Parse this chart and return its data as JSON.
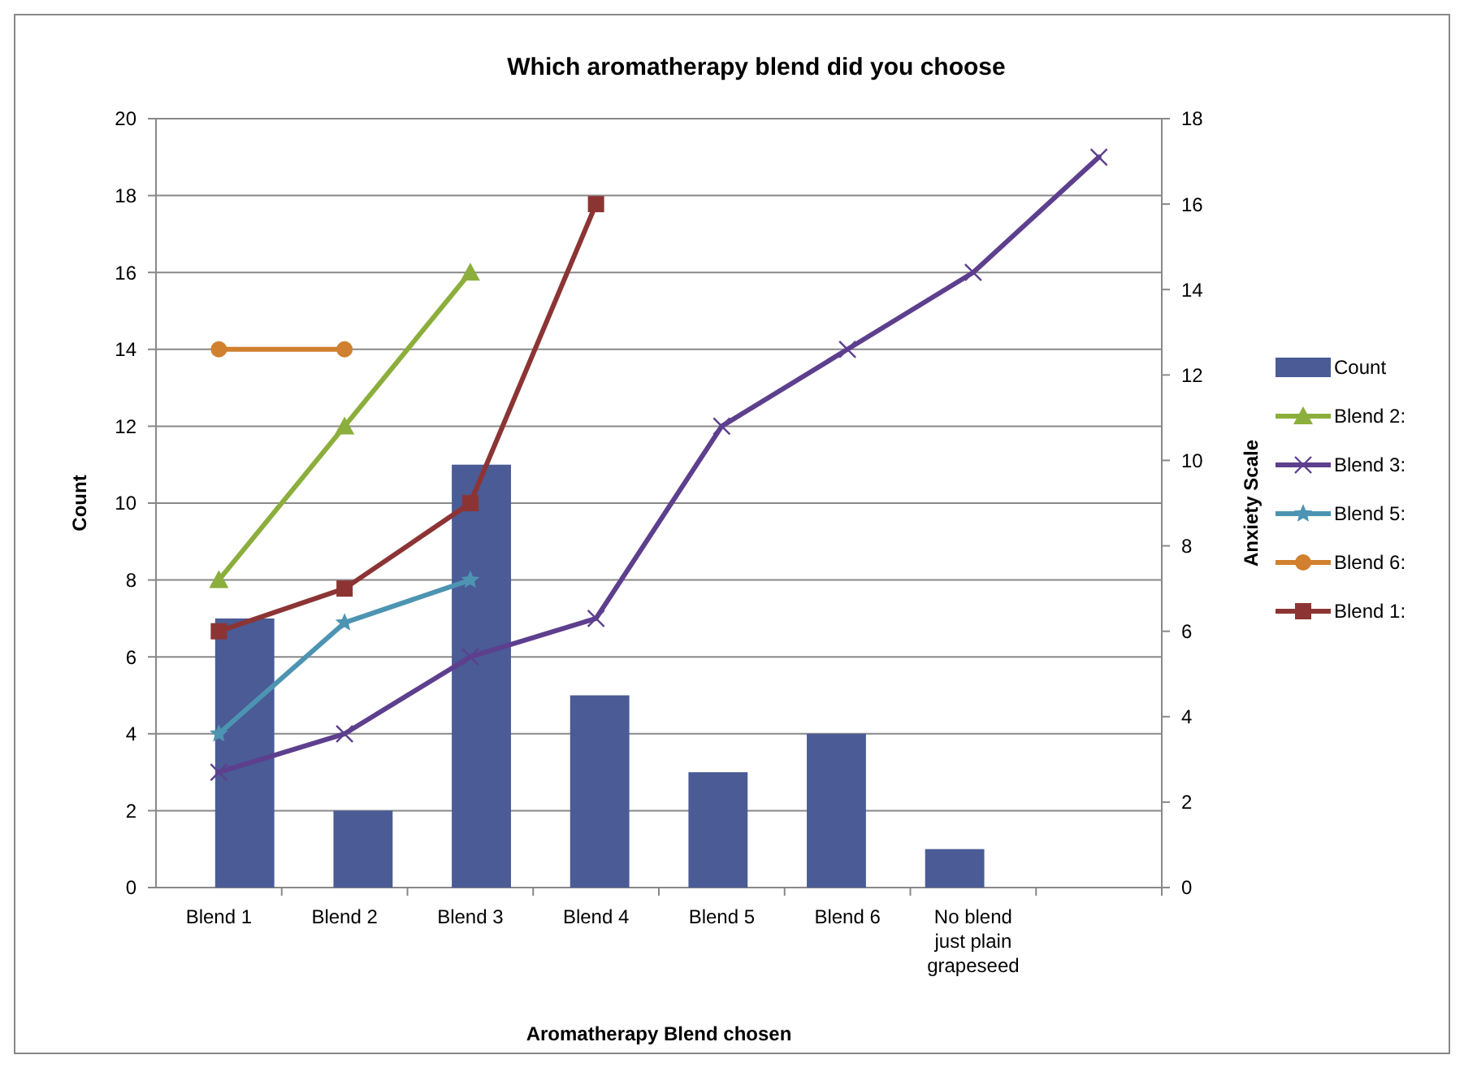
{
  "chart_data": {
    "type": "bar",
    "title": "Which aromatherapy blend did you choose",
    "xlabel": "Aromatherapy Blend chosen",
    "ylabel": "Count",
    "y2label": "Anxiety Scale",
    "categories": [
      "Blend 1",
      "Blend 2",
      "Blend 3",
      "Blend 4",
      "Blend 5",
      "Blend 6",
      "No blend just plain grapeseed",
      null
    ],
    "ylim": [
      0,
      20
    ],
    "yticks": [
      0,
      2,
      4,
      6,
      8,
      10,
      12,
      14,
      16,
      18,
      20
    ],
    "y2lim": [
      0,
      18
    ],
    "y2ticks": [
      0,
      2,
      4,
      6,
      8,
      10,
      12,
      14,
      16,
      18
    ],
    "grid": "y",
    "legend": "right",
    "series": [
      {
        "name": "Count",
        "color": "#4a5b96",
        "values": [
          7,
          2,
          11,
          5,
          3,
          4,
          1,
          null
        ]
      },
      {
        "name": "Blend 2:",
        "type": "line",
        "axis": "y2",
        "marker": "triangle",
        "color": "#8cae3c",
        "values": [
          7.2,
          10.8,
          14.4,
          null,
          null,
          null,
          null,
          null
        ]
      },
      {
        "name": "Blend 3:",
        "type": "line",
        "axis": "y2",
        "marker": "cross",
        "color": "#5d3f8e",
        "values": [
          2.7,
          3.6,
          5.4,
          6.3,
          10.8,
          12.6,
          14.4,
          17.1
        ]
      },
      {
        "name": "Blend 5:",
        "type": "line",
        "axis": "y2",
        "marker": "star",
        "color": "#4d94b2",
        "values": [
          3.6,
          6.2,
          7.2,
          null,
          null,
          null,
          null,
          null
        ]
      },
      {
        "name": "Blend 6:",
        "type": "line",
        "axis": "y2",
        "marker": "circle",
        "color": "#d0802e",
        "values": [
          12.6,
          12.6,
          null,
          null,
          null,
          null,
          null,
          null
        ]
      },
      {
        "name": "Blend 1:",
        "type": "line",
        "axis": "y2",
        "marker": "square",
        "color": "#8c3434",
        "values": [
          6,
          7,
          9,
          16,
          null,
          null,
          null,
          null
        ]
      }
    ]
  }
}
